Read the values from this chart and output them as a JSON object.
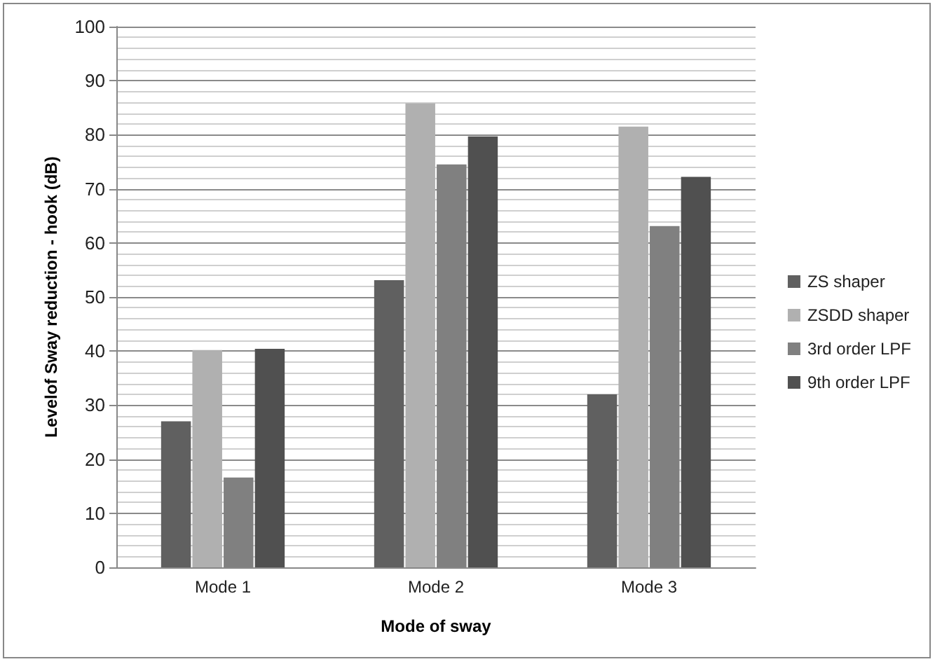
{
  "chart_data": {
    "type": "bar",
    "xlabel": "Mode of sway",
    "ylabel": "Levelof Sway reduction - hook (dB)",
    "categories": [
      "Mode 1",
      "Mode 2",
      "Mode 3"
    ],
    "series": [
      {
        "name": "ZS shaper",
        "color": "#606060",
        "values": [
          27,
          53.1,
          32
        ]
      },
      {
        "name": "ZSDD shaper",
        "color": "#b0b0b0",
        "values": [
          40.2,
          85.8,
          81.5
        ]
      },
      {
        "name": "3rd order LPF",
        "color": "#808080",
        "values": [
          16.6,
          74.5,
          63.1
        ]
      },
      {
        "name": "9th order LPF",
        "color": "#505050",
        "values": [
          40.4,
          79.7,
          72.2
        ]
      }
    ],
    "ylim": [
      0,
      100
    ],
    "yticks": [
      0,
      10,
      20,
      30,
      40,
      50,
      60,
      70,
      80,
      90,
      100
    ],
    "grid": "y",
    "legend": "right"
  }
}
